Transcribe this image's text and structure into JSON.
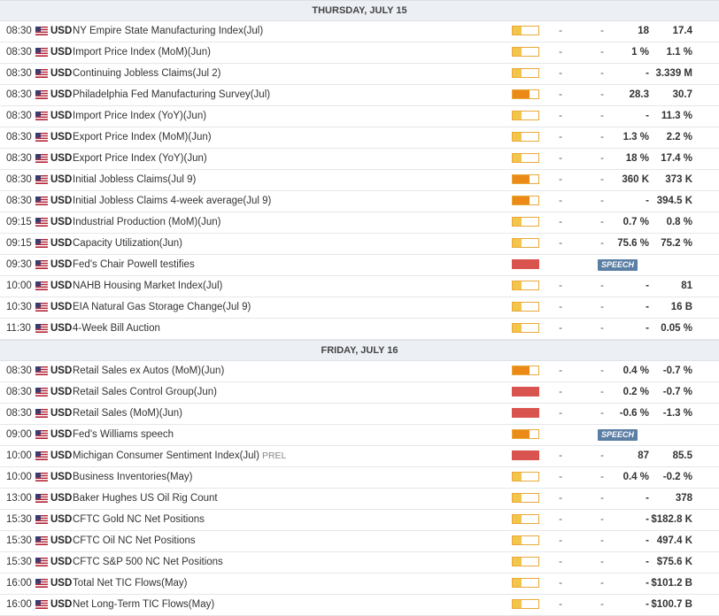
{
  "colors": {
    "low": "#f3c54a",
    "medium": "#ec8a17",
    "high": "#d9534f",
    "speech_badge": "#5b7ea4"
  },
  "icons": {
    "flag": "us-flag-icon"
  },
  "days": [
    {
      "header": "THURSDAY, JULY 15",
      "events": [
        {
          "time": "08:30",
          "currency": "USD",
          "name": "NY Empire State Manufacturing Index(Jul)",
          "volatility": 1,
          "actual": "-",
          "deviation": "-",
          "consensus": "18",
          "previous": "17.4",
          "badge": ""
        },
        {
          "time": "08:30",
          "currency": "USD",
          "name": "Import Price Index (MoM)(Jun)",
          "volatility": 1,
          "actual": "-",
          "deviation": "-",
          "consensus": "1 %",
          "previous": "1.1 %",
          "badge": ""
        },
        {
          "time": "08:30",
          "currency": "USD",
          "name": "Continuing Jobless Claims(Jul 2)",
          "volatility": 1,
          "actual": "-",
          "deviation": "-",
          "consensus": "-",
          "previous": "3.339 M",
          "badge": ""
        },
        {
          "time": "08:30",
          "currency": "USD",
          "name": "Philadelphia Fed Manufacturing Survey(Jul)",
          "volatility": 2,
          "actual": "-",
          "deviation": "-",
          "consensus": "28.3",
          "previous": "30.7",
          "badge": ""
        },
        {
          "time": "08:30",
          "currency": "USD",
          "name": "Import Price Index (YoY)(Jun)",
          "volatility": 1,
          "actual": "-",
          "deviation": "-",
          "consensus": "-",
          "previous": "11.3 %",
          "badge": ""
        },
        {
          "time": "08:30",
          "currency": "USD",
          "name": "Export Price Index (MoM)(Jun)",
          "volatility": 1,
          "actual": "-",
          "deviation": "-",
          "consensus": "1.3 %",
          "previous": "2.2 %",
          "badge": ""
        },
        {
          "time": "08:30",
          "currency": "USD",
          "name": "Export Price Index (YoY)(Jun)",
          "volatility": 1,
          "actual": "-",
          "deviation": "-",
          "consensus": "18 %",
          "previous": "17.4 %",
          "badge": ""
        },
        {
          "time": "08:30",
          "currency": "USD",
          "name": "Initial Jobless Claims(Jul 9)",
          "volatility": 2,
          "actual": "-",
          "deviation": "-",
          "consensus": "360 K",
          "previous": "373 K",
          "badge": ""
        },
        {
          "time": "08:30",
          "currency": "USD",
          "name": "Initial Jobless Claims 4-week average(Jul 9)",
          "volatility": 2,
          "actual": "-",
          "deviation": "-",
          "consensus": "-",
          "previous": "394.5 K",
          "badge": ""
        },
        {
          "time": "09:15",
          "currency": "USD",
          "name": "Industrial Production (MoM)(Jun)",
          "volatility": 1,
          "actual": "-",
          "deviation": "-",
          "consensus": "0.7 %",
          "previous": "0.8 %",
          "badge": ""
        },
        {
          "time": "09:15",
          "currency": "USD",
          "name": "Capacity Utilization(Jun)",
          "volatility": 1,
          "actual": "-",
          "deviation": "-",
          "consensus": "75.6 %",
          "previous": "75.2 %",
          "badge": ""
        },
        {
          "time": "09:30",
          "currency": "USD",
          "name": "Fed's Chair Powell testifies",
          "volatility": 3,
          "actual": "",
          "deviation": "",
          "consensus": "",
          "previous": "",
          "badge": "SPEECH"
        },
        {
          "time": "10:00",
          "currency": "USD",
          "name": "NAHB Housing Market Index(Jul)",
          "volatility": 1,
          "actual": "-",
          "deviation": "-",
          "consensus": "-",
          "previous": "81",
          "badge": ""
        },
        {
          "time": "10:30",
          "currency": "USD",
          "name": "EIA Natural Gas Storage Change(Jul 9)",
          "volatility": 1,
          "actual": "-",
          "deviation": "-",
          "consensus": "-",
          "previous": "16 B",
          "badge": ""
        },
        {
          "time": "11:30",
          "currency": "USD",
          "name": "4-Week Bill Auction",
          "volatility": 1,
          "actual": "-",
          "deviation": "-",
          "consensus": "-",
          "previous": "0.05 %",
          "badge": ""
        }
      ]
    },
    {
      "header": "FRIDAY, JULY 16",
      "events": [
        {
          "time": "08:30",
          "currency": "USD",
          "name": "Retail Sales ex Autos (MoM)(Jun)",
          "volatility": 2,
          "actual": "-",
          "deviation": "-",
          "consensus": "0.4 %",
          "previous": "-0.7 %",
          "badge": ""
        },
        {
          "time": "08:30",
          "currency": "USD",
          "name": "Retail Sales Control Group(Jun)",
          "volatility": 3,
          "actual": "-",
          "deviation": "-",
          "consensus": "0.2 %",
          "previous": "-0.7 %",
          "badge": ""
        },
        {
          "time": "08:30",
          "currency": "USD",
          "name": "Retail Sales (MoM)(Jun)",
          "volatility": 3,
          "actual": "-",
          "deviation": "-",
          "consensus": "-0.6 %",
          "previous": "-1.3 %",
          "badge": ""
        },
        {
          "time": "09:00",
          "currency": "USD",
          "name": "Fed's Williams speech",
          "volatility": 2,
          "actual": "",
          "deviation": "",
          "consensus": "",
          "previous": "",
          "badge": "SPEECH"
        },
        {
          "time": "10:00",
          "currency": "USD",
          "name": "Michigan Consumer Sentiment Index(Jul)",
          "prel": "PREL",
          "volatility": 3,
          "actual": "-",
          "deviation": "-",
          "consensus": "87",
          "previous": "85.5",
          "badge": ""
        },
        {
          "time": "10:00",
          "currency": "USD",
          "name": "Business Inventories(May)",
          "volatility": 1,
          "actual": "-",
          "deviation": "-",
          "consensus": "0.4 %",
          "previous": "-0.2 %",
          "badge": ""
        },
        {
          "time": "13:00",
          "currency": "USD",
          "name": "Baker Hughes US Oil Rig Count",
          "volatility": 1,
          "actual": "-",
          "deviation": "-",
          "consensus": "-",
          "previous": "378",
          "badge": ""
        },
        {
          "time": "15:30",
          "currency": "USD",
          "name": "CFTC Gold NC Net Positions",
          "volatility": 1,
          "actual": "-",
          "deviation": "-",
          "consensus": "-",
          "previous": "$182.8 K",
          "badge": ""
        },
        {
          "time": "15:30",
          "currency": "USD",
          "name": "CFTC Oil NC Net Positions",
          "volatility": 1,
          "actual": "-",
          "deviation": "-",
          "consensus": "-",
          "previous": "497.4 K",
          "badge": ""
        },
        {
          "time": "15:30",
          "currency": "USD",
          "name": "CFTC S&P 500 NC Net Positions",
          "volatility": 1,
          "actual": "-",
          "deviation": "-",
          "consensus": "-",
          "previous": "$75.6 K",
          "badge": ""
        },
        {
          "time": "16:00",
          "currency": "USD",
          "name": "Total Net TIC Flows(May)",
          "volatility": 1,
          "actual": "-",
          "deviation": "-",
          "consensus": "-",
          "previous": "$101.2 B",
          "badge": ""
        },
        {
          "time": "16:00",
          "currency": "USD",
          "name": "Net Long-Term TIC Flows(May)",
          "volatility": 1,
          "actual": "-",
          "deviation": "-",
          "consensus": "-",
          "previous": "$100.7 B",
          "badge": ""
        }
      ]
    }
  ]
}
